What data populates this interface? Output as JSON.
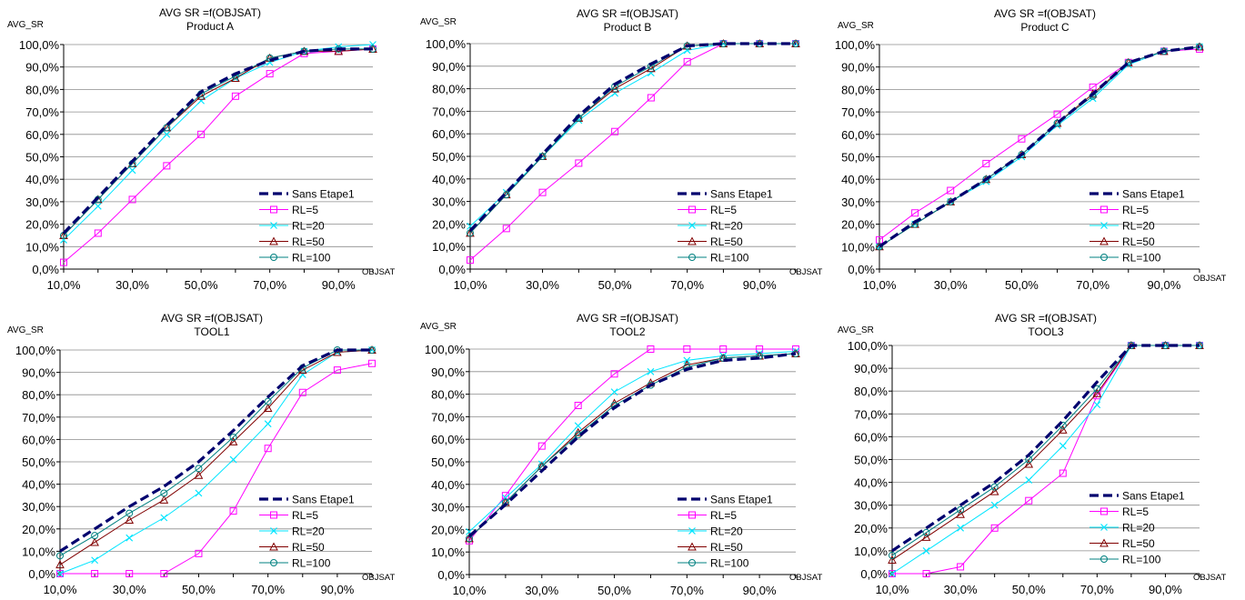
{
  "chart_data": [
    {
      "type": "line",
      "title": "AVG SR =f(OBJSAT)",
      "subtitle": "Product A",
      "xlabel": "OBJSAT",
      "ylabel": "AVG_SR",
      "x": [
        10,
        20,
        30,
        40,
        50,
        60,
        70,
        80,
        90,
        100
      ],
      "x_tick_labels": [
        "10,0%",
        "30,0%",
        "50,0%",
        "70,0%",
        "90,0%"
      ],
      "y_tick_labels": [
        "0,0%",
        "10,0%",
        "20,0%",
        "30,0%",
        "40,0%",
        "50,0%",
        "60,0%",
        "70,0%",
        "80,0%",
        "90,0%",
        "100,0%"
      ],
      "ylim": [
        0,
        100
      ],
      "grid": true,
      "legend_position": "bottom-right",
      "series": [
        {
          "name": "Sans Etape1",
          "values": [
            16,
            32,
            48,
            64,
            79,
            87,
            93,
            97,
            98,
            98
          ]
        },
        {
          "name": "RL=5",
          "values": [
            3,
            16,
            31,
            46,
            60,
            77,
            87,
            96,
            97,
            98
          ]
        },
        {
          "name": "RL=20",
          "values": [
            13,
            28,
            44,
            60,
            75,
            85,
            92,
            97,
            99,
            100
          ]
        },
        {
          "name": "RL=50",
          "values": [
            15,
            31,
            47,
            63,
            77,
            85,
            94,
            97,
            97,
            98
          ]
        },
        {
          "name": "RL=100",
          "values": [
            15,
            31,
            47,
            63,
            78,
            86,
            94,
            97,
            98,
            98
          ]
        }
      ]
    },
    {
      "type": "line",
      "title": "AVG SR =f(OBJSAT)",
      "subtitle": "Product B",
      "xlabel": "OBJSAT",
      "ylabel": "AVG_SR",
      "x": [
        10,
        20,
        30,
        40,
        50,
        60,
        70,
        80,
        90,
        100
      ],
      "x_tick_labels": [
        "10,0%",
        "30,0%",
        "50,0%",
        "70,0%",
        "90,0%"
      ],
      "y_tick_labels": [
        "0,0%",
        "10,0%",
        "20,0%",
        "30,0%",
        "40,0%",
        "50,0%",
        "60,0%",
        "70,0%",
        "80,0%",
        "90,0%",
        "100,0%"
      ],
      "ylim": [
        0,
        100
      ],
      "grid": true,
      "legend_position": "bottom-right",
      "series": [
        {
          "name": "Sans Etape1",
          "values": [
            17,
            34,
            51,
            68,
            82,
            91,
            99,
            100,
            100,
            100
          ]
        },
        {
          "name": "RL=5",
          "values": [
            4,
            18,
            34,
            47,
            61,
            76,
            92,
            100,
            100,
            100
          ]
        },
        {
          "name": "RL=20",
          "values": [
            19,
            34,
            50,
            66,
            78,
            87,
            97,
            100,
            100,
            100
          ]
        },
        {
          "name": "RL=50",
          "values": [
            16,
            33,
            50,
            67,
            80,
            89,
            99,
            100,
            100,
            100
          ]
        },
        {
          "name": "RL=100",
          "values": [
            16,
            33,
            50,
            67,
            81,
            90,
            99,
            100,
            100,
            100
          ]
        }
      ]
    },
    {
      "type": "line",
      "title": "AVG SR =f(OBJSAT)",
      "subtitle": "Product C",
      "xlabel": "OBJSAT",
      "ylabel": "AVG_SR",
      "x": [
        10,
        20,
        30,
        40,
        50,
        60,
        70,
        80,
        90,
        100
      ],
      "x_tick_labels": [
        "10,0%",
        "30,0%",
        "50,0%",
        "70,0%",
        "90,0%"
      ],
      "y_tick_labels": [
        "0,0%",
        "10,0%",
        "20,0%",
        "30,0%",
        "40,0%",
        "50,0%",
        "60,0%",
        "70,0%",
        "80,0%",
        "90,0%",
        "100,0%"
      ],
      "ylim": [
        0,
        100
      ],
      "grid": true,
      "legend_position": "bottom-right",
      "series": [
        {
          "name": "Sans Etape1",
          "values": [
            10,
            21,
            30,
            40,
            51,
            65,
            78,
            92,
            97,
            99
          ]
        },
        {
          "name": "RL=5",
          "values": [
            13,
            25,
            35,
            47,
            58,
            69,
            81,
            92,
            97,
            98
          ]
        },
        {
          "name": "RL=20",
          "values": [
            10,
            20,
            30,
            39,
            50,
            64,
            76,
            91,
            97,
            99
          ]
        },
        {
          "name": "RL=50",
          "values": [
            10,
            20,
            30,
            40,
            51,
            65,
            78,
            92,
            97,
            99
          ]
        },
        {
          "name": "RL=100",
          "values": [
            10,
            20,
            30,
            40,
            51,
            65,
            77,
            92,
            97,
            99
          ]
        }
      ]
    },
    {
      "type": "line",
      "title": "AVG SR =f(OBJSAT)",
      "subtitle": "TOOL1",
      "xlabel": "OBJSAT",
      "ylabel": "AVG_SR",
      "x": [
        10,
        20,
        30,
        40,
        50,
        60,
        70,
        80,
        90,
        100
      ],
      "x_tick_labels": [
        "10,0%",
        "30,0%",
        "50,0%",
        "70,0%",
        "90,0%"
      ],
      "y_tick_labels": [
        "0,0%",
        "10,0%",
        "20,0%",
        "30,0%",
        "40,0%",
        "50,0%",
        "60,0%",
        "70,0%",
        "80,0%",
        "90,0%",
        "100,0%"
      ],
      "ylim": [
        0,
        100
      ],
      "grid": true,
      "legend_position": "bottom-right",
      "series": [
        {
          "name": "Sans Etape1",
          "values": [
            10,
            20,
            30,
            39,
            50,
            64,
            79,
            93,
            100,
            100
          ]
        },
        {
          "name": "RL=5",
          "values": [
            0,
            0,
            0,
            0,
            9,
            28,
            56,
            81,
            91,
            94
          ]
        },
        {
          "name": "RL=20",
          "values": [
            0,
            6,
            16,
            25,
            36,
            51,
            67,
            89,
            99,
            100
          ]
        },
        {
          "name": "RL=50",
          "values": [
            4,
            14,
            24,
            33,
            44,
            59,
            74,
            91,
            99,
            100
          ]
        },
        {
          "name": "RL=100",
          "values": [
            8,
            17,
            27,
            36,
            47,
            61,
            77,
            92,
            100,
            100
          ]
        }
      ]
    },
    {
      "type": "line",
      "title": "AVG SR =f(OBJSAT)",
      "subtitle": "TOOL2",
      "xlabel": "OBJSAT",
      "ylabel": "AVG_SR",
      "x": [
        10,
        20,
        30,
        40,
        50,
        60,
        70,
        80,
        90,
        100
      ],
      "x_tick_labels": [
        "10,0%",
        "30,0%",
        "50,0%",
        "70,0%",
        "90,0%"
      ],
      "y_tick_labels": [
        "0,0%",
        "10,0%",
        "20,0%",
        "30,0%",
        "40,0%",
        "50,0%",
        "60,0%",
        "70,0%",
        "80,0%",
        "90,0%",
        "100,0%"
      ],
      "ylim": [
        0,
        100
      ],
      "grid": true,
      "legend_position": "bottom-right",
      "series": [
        {
          "name": "Sans Etape1",
          "values": [
            17,
            31,
            46,
            61,
            74,
            84,
            91,
            95,
            96,
            98
          ]
        },
        {
          "name": "RL=5",
          "values": [
            15,
            35,
            57,
            75,
            89,
            100,
            100,
            100,
            100,
            100
          ]
        },
        {
          "name": "RL=20",
          "values": [
            19,
            34,
            49,
            66,
            81,
            90,
            95,
            97,
            98,
            99
          ]
        },
        {
          "name": "RL=50",
          "values": [
            16,
            32,
            48,
            63,
            76,
            85,
            93,
            96,
            97,
            98
          ]
        },
        {
          "name": "RL=100",
          "values": [
            16,
            32,
            48,
            62,
            75,
            84,
            92,
            96,
            97,
            98
          ]
        }
      ]
    },
    {
      "type": "line",
      "title": "AVG SR =f(OBJSAT)",
      "subtitle": "TOOL3",
      "xlabel": "OBJSAT",
      "ylabel": "AVG_SR",
      "x": [
        10,
        20,
        30,
        40,
        50,
        60,
        70,
        80,
        90,
        100
      ],
      "x_tick_labels": [
        "10,0%",
        "30,0%",
        "50,0%",
        "70,0%",
        "90,0%"
      ],
      "y_tick_labels": [
        "0,0%",
        "10,0%",
        "20,0%",
        "30,0%",
        "40,0%",
        "50,0%",
        "60,0%",
        "70,0%",
        "80,0%",
        "90,0%",
        "100,0%"
      ],
      "ylim": [
        0,
        100
      ],
      "grid": true,
      "legend_position": "bottom-right",
      "series": [
        {
          "name": "Sans Etape1",
          "values": [
            10,
            20,
            30,
            40,
            52,
            67,
            84,
            100,
            100,
            100
          ]
        },
        {
          "name": "RL=5",
          "values": [
            0,
            0,
            3,
            20,
            32,
            44,
            78,
            100,
            100,
            100
          ]
        },
        {
          "name": "RL=20",
          "values": [
            0,
            10,
            20,
            30,
            41,
            56,
            74,
            100,
            100,
            100
          ]
        },
        {
          "name": "RL=50",
          "values": [
            6,
            16,
            26,
            36,
            48,
            63,
            79,
            100,
            100,
            100
          ]
        },
        {
          "name": "RL=100",
          "values": [
            8,
            18,
            28,
            38,
            50,
            65,
            81,
            100,
            100,
            100
          ]
        }
      ]
    }
  ],
  "series_styles": [
    {
      "color": "#00006e",
      "marker": "none",
      "dashed": true
    },
    {
      "color": "#ff00ff",
      "marker": "square",
      "dashed": false
    },
    {
      "color": "#00e5ff",
      "marker": "x",
      "dashed": false
    },
    {
      "color": "#800000",
      "marker": "triangle",
      "dashed": false
    },
    {
      "color": "#008080",
      "marker": "circle",
      "dashed": false
    }
  ]
}
